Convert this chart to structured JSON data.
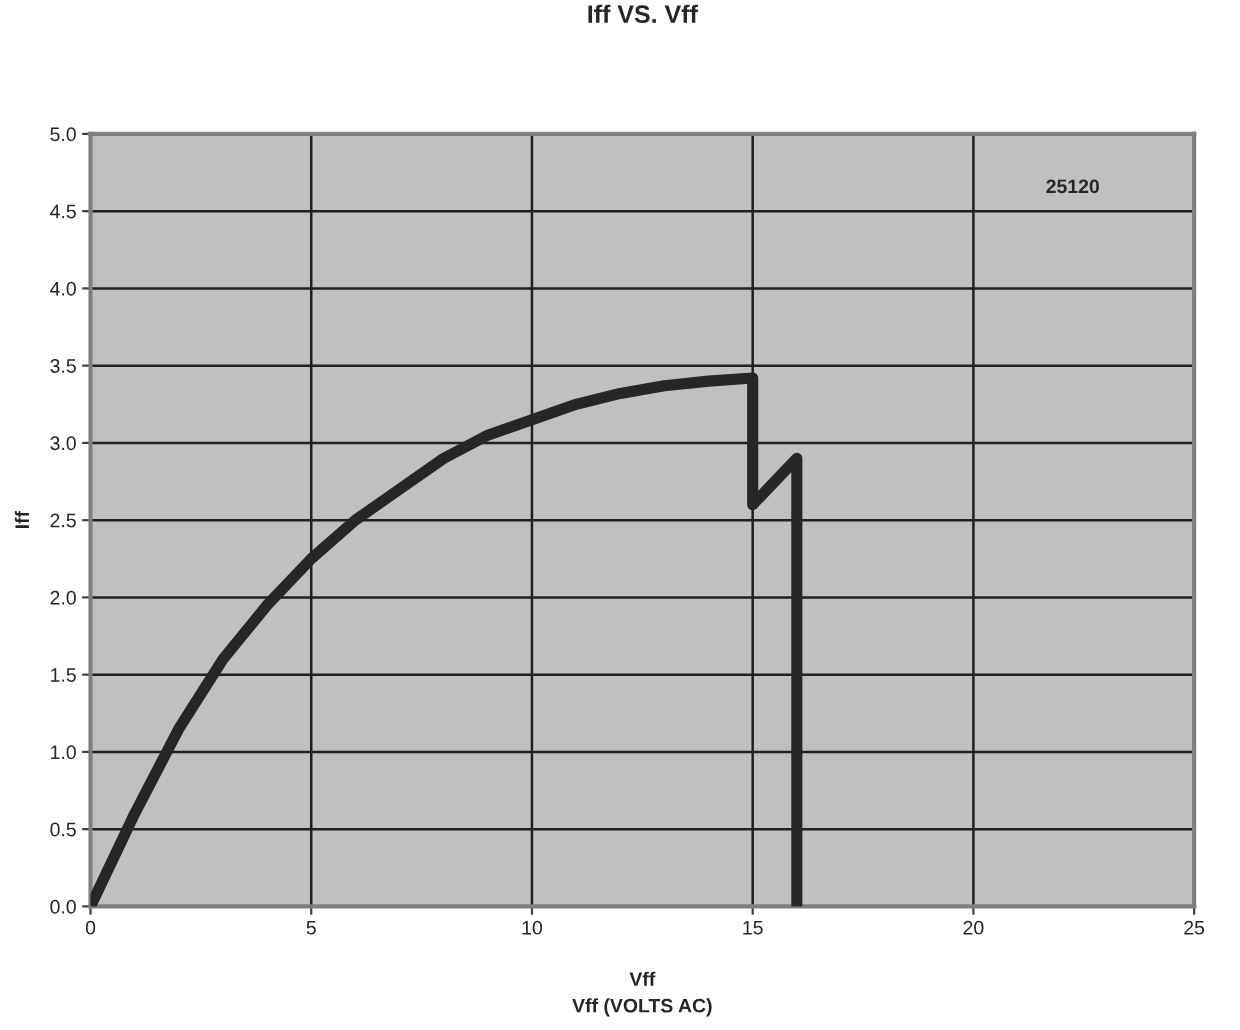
{
  "chart_data": {
    "type": "line",
    "title": "Iff VS. Vff",
    "xlabel": "Vff",
    "ylabel": "Iff",
    "annotations": [
      "25120",
      "Vff (VOLTS AC)"
    ],
    "x": [
      0,
      1,
      2,
      3,
      4,
      5,
      6,
      7,
      8,
      9,
      10,
      11,
      12,
      13,
      14,
      15,
      15,
      16,
      16
    ],
    "series": [
      {
        "color": "#262626",
        "values": [
          0,
          0.6,
          1.15,
          1.6,
          1.95,
          2.25,
          2.5,
          2.7,
          2.9,
          3.05,
          3.15,
          3.25,
          3.32,
          3.37,
          3.4,
          3.42,
          2.6,
          2.9,
          0
        ]
      }
    ],
    "xlim": [
      0,
      25
    ],
    "xticks": [
      0,
      5,
      10,
      15,
      20,
      25
    ],
    "ylim": [
      0,
      5
    ],
    "yticks": [
      {
        "value": 0,
        "label": "0.0"
      },
      {
        "value": 0.5,
        "label": "0.5"
      },
      {
        "value": 1,
        "label": "1.0"
      },
      {
        "value": 1.5,
        "label": "1.5"
      },
      {
        "value": 2,
        "label": "2.0"
      },
      {
        "value": 2.5,
        "label": "2.5"
      },
      {
        "value": 3,
        "label": "3.0"
      },
      {
        "value": 3.5,
        "label": "3.5"
      },
      {
        "value": 4,
        "label": "4.0"
      },
      {
        "value": 4.5,
        "label": "4.5"
      },
      {
        "value": 5,
        "label": "5.0"
      }
    ],
    "grid": true,
    "legend": false,
    "marker": "none",
    "line_style": "solid"
  }
}
